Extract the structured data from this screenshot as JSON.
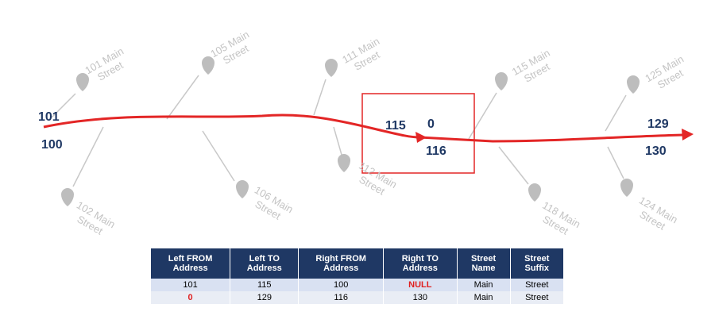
{
  "road_labels": [
    "101",
    "100",
    "115",
    "0",
    "116",
    "129",
    "130"
  ],
  "pins": [
    "101 Main Street",
    "105 Main Street",
    "111 Main Street",
    "115 Main Street",
    "125 Main Street",
    "102 Main Street",
    "106 Main Street",
    "112 Main Street",
    "118 Main Street",
    "124 Main Street"
  ],
  "table": {
    "header": [
      "Left FROM Address",
      "Left TO Address",
      "Right FROM Address",
      "Right TO Address",
      "Street Name",
      "Street Suffix"
    ],
    "rows": [
      [
        "101",
        "115",
        "100",
        "NULL",
        "Main",
        "Street"
      ],
      [
        "0",
        "129",
        "116",
        "130",
        "Main",
        "Street"
      ]
    ]
  }
}
